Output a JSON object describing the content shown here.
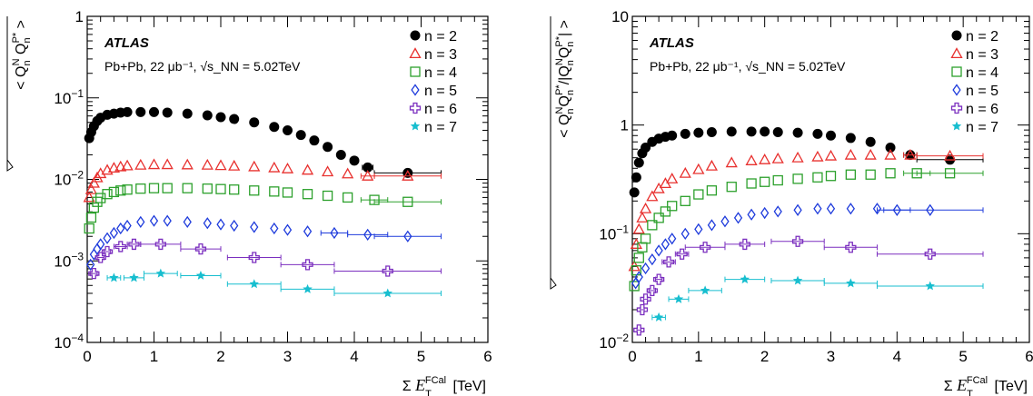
{
  "chart_data": [
    {
      "type": "scatter",
      "ylabel": "√< Q_n^N Q_n^{P*} >",
      "xlabel": "Σ E_T^FCal [TeV]",
      "atlas_label": "ATLAS",
      "subtitle": "Pb+Pb, 22 μb⁻¹, √s_NN = 5.02TeV",
      "xlim": [
        0,
        6
      ],
      "ylim": [
        0.0001,
        1
      ],
      "yscale": "log",
      "x_ticks": [
        "0",
        "1",
        "2",
        "3",
        "4",
        "5",
        "6"
      ],
      "y_ticks": [
        {
          "base": "10",
          "exp": "−4"
        },
        {
          "base": "10",
          "exp": "−3"
        },
        {
          "base": "10",
          "exp": "−2"
        },
        {
          "base": "10",
          "exp": "−1"
        },
        {
          "base": "1",
          "exp": ""
        }
      ],
      "legend_position": "top-right",
      "series": [
        {
          "name": "n = 2",
          "color": "#000000",
          "marker": "circle-filled",
          "x": [
            0.03,
            0.06,
            0.1,
            0.15,
            0.2,
            0.3,
            0.4,
            0.5,
            0.6,
            0.8,
            1.0,
            1.2,
            1.5,
            1.8,
            2.0,
            2.2,
            2.5,
            2.8,
            3.0,
            3.2,
            3.4,
            3.6,
            3.8,
            4.0,
            4.2,
            4.8
          ],
          "y": [
            0.032,
            0.038,
            0.045,
            0.052,
            0.057,
            0.062,
            0.064,
            0.066,
            0.067,
            0.067,
            0.067,
            0.066,
            0.064,
            0.061,
            0.058,
            0.055,
            0.05,
            0.044,
            0.04,
            0.035,
            0.03,
            0.025,
            0.02,
            0.017,
            0.014,
            0.012
          ],
          "xerr": [
            0,
            0,
            0,
            0,
            0,
            0,
            0,
            0,
            0,
            0,
            0,
            0,
            0,
            0,
            0,
            0,
            0,
            0,
            0,
            0,
            0,
            0,
            0,
            0,
            0.08,
            0.5
          ]
        },
        {
          "name": "n = 3",
          "color": "#e8312f",
          "marker": "triangle-open",
          "x": [
            0.03,
            0.06,
            0.1,
            0.15,
            0.2,
            0.3,
            0.4,
            0.5,
            0.6,
            0.8,
            1.0,
            1.2,
            1.5,
            1.8,
            2.0,
            2.2,
            2.5,
            2.8,
            3.0,
            3.3,
            3.6,
            3.9,
            4.2,
            4.8
          ],
          "y": [
            0.006,
            0.0075,
            0.009,
            0.0105,
            0.0118,
            0.013,
            0.0138,
            0.0143,
            0.0147,
            0.015,
            0.0152,
            0.0152,
            0.0151,
            0.015,
            0.0148,
            0.0146,
            0.0143,
            0.0139,
            0.0135,
            0.013,
            0.0124,
            0.0117,
            0.011,
            0.011
          ],
          "xerr": [
            0,
            0,
            0,
            0,
            0,
            0,
            0,
            0,
            0,
            0,
            0,
            0,
            0,
            0,
            0,
            0,
            0,
            0,
            0,
            0,
            0,
            0,
            0.1,
            0.5
          ]
        },
        {
          "name": "n = 4",
          "color": "#2ca02c",
          "marker": "square-open",
          "x": [
            0.03,
            0.06,
            0.1,
            0.15,
            0.2,
            0.3,
            0.4,
            0.5,
            0.6,
            0.8,
            1.0,
            1.2,
            1.5,
            1.8,
            2.0,
            2.2,
            2.5,
            2.8,
            3.0,
            3.3,
            3.6,
            3.9,
            4.3,
            4.8
          ],
          "y": [
            0.0025,
            0.0034,
            0.0045,
            0.0053,
            0.0059,
            0.0066,
            0.007,
            0.0073,
            0.0075,
            0.0077,
            0.0078,
            0.0078,
            0.0078,
            0.0077,
            0.0076,
            0.0075,
            0.0073,
            0.0071,
            0.0069,
            0.0066,
            0.0063,
            0.006,
            0.0056,
            0.0053
          ],
          "xerr": [
            0,
            0,
            0,
            0,
            0,
            0,
            0,
            0,
            0,
            0,
            0,
            0,
            0,
            0,
            0,
            0,
            0,
            0,
            0,
            0,
            0,
            0,
            0.2,
            0.5
          ]
        },
        {
          "name": "n = 5",
          "color": "#1f3cdc",
          "marker": "diamond-open",
          "x": [
            0.05,
            0.1,
            0.15,
            0.2,
            0.3,
            0.4,
            0.5,
            0.6,
            0.8,
            1.0,
            1.2,
            1.5,
            1.8,
            2.0,
            2.2,
            2.5,
            2.8,
            3.0,
            3.3,
            3.7,
            4.2,
            4.8
          ],
          "y": [
            0.0009,
            0.0012,
            0.0014,
            0.0016,
            0.0019,
            0.0022,
            0.0025,
            0.0027,
            0.003,
            0.0031,
            0.0031,
            0.003,
            0.0029,
            0.0028,
            0.0027,
            0.0026,
            0.0025,
            0.0024,
            0.0023,
            0.0022,
            0.0021,
            0.002
          ],
          "xerr": [
            0,
            0,
            0,
            0,
            0,
            0,
            0,
            0,
            0,
            0,
            0,
            0,
            0,
            0,
            0,
            0,
            0,
            0,
            0,
            0.2,
            0.3,
            0.5
          ]
        },
        {
          "name": "n = 6",
          "color": "#7b2fbf",
          "marker": "cross-open",
          "x": [
            0.1,
            0.2,
            0.3,
            0.5,
            0.7,
            1.1,
            1.7,
            2.5,
            3.3,
            4.5
          ],
          "y": [
            0.0007,
            0.0011,
            0.0013,
            0.0015,
            0.0016,
            0.0016,
            0.0014,
            0.0011,
            0.0009,
            0.00075
          ],
          "xerr": [
            0.05,
            0.05,
            0.05,
            0.1,
            0.1,
            0.3,
            0.3,
            0.4,
            0.4,
            0.8
          ]
        },
        {
          "name": "n = 7",
          "color": "#17becf",
          "marker": "star-filled",
          "x": [
            0.4,
            0.7,
            1.1,
            1.7,
            2.5,
            3.3,
            4.5
          ],
          "y": [
            0.00062,
            0.00062,
            0.0007,
            0.00066,
            0.00052,
            0.00045,
            0.0004
          ],
          "xerr": [
            0.1,
            0.15,
            0.25,
            0.3,
            0.4,
            0.4,
            0.8
          ]
        }
      ]
    },
    {
      "type": "scatter",
      "ylabel": "√< Q_n^N Q_n^{P*} / |Q_n^N Q_n^{P*}| >",
      "xlabel": "Σ E_T^FCal [TeV]",
      "atlas_label": "ATLAS",
      "subtitle": "Pb+Pb, 22 μb⁻¹, √s_NN = 5.02TeV",
      "xlim": [
        0,
        6
      ],
      "ylim": [
        0.01,
        10
      ],
      "yscale": "log",
      "x_ticks": [
        "0",
        "1",
        "2",
        "3",
        "4",
        "5",
        "6"
      ],
      "y_ticks": [
        {
          "base": "10",
          "exp": "−2"
        },
        {
          "base": "10",
          "exp": "−1"
        },
        {
          "base": "1",
          "exp": ""
        },
        {
          "base": "10",
          "exp": ""
        }
      ],
      "legend_position": "top-right",
      "series": [
        {
          "name": "n = 2",
          "color": "#000000",
          "marker": "circle-filled",
          "x": [
            0.03,
            0.06,
            0.1,
            0.15,
            0.2,
            0.3,
            0.4,
            0.5,
            0.6,
            0.8,
            1.0,
            1.2,
            1.5,
            1.8,
            2.0,
            2.2,
            2.5,
            2.8,
            3.0,
            3.3,
            3.6,
            3.9,
            4.2,
            4.8
          ],
          "y": [
            0.24,
            0.33,
            0.45,
            0.55,
            0.62,
            0.7,
            0.75,
            0.78,
            0.8,
            0.83,
            0.85,
            0.86,
            0.87,
            0.87,
            0.87,
            0.86,
            0.85,
            0.83,
            0.8,
            0.76,
            0.7,
            0.62,
            0.53,
            0.48
          ],
          "xerr": [
            0,
            0,
            0,
            0,
            0,
            0,
            0,
            0,
            0,
            0,
            0,
            0,
            0,
            0,
            0,
            0,
            0,
            0,
            0,
            0,
            0,
            0,
            0.1,
            0.5
          ]
        },
        {
          "name": "n = 3",
          "color": "#e8312f",
          "marker": "triangle-open",
          "x": [
            0.03,
            0.06,
            0.1,
            0.15,
            0.2,
            0.3,
            0.4,
            0.5,
            0.6,
            0.8,
            1.0,
            1.2,
            1.5,
            1.8,
            2.0,
            2.2,
            2.5,
            2.8,
            3.0,
            3.3,
            3.6,
            3.9,
            4.2,
            4.8
          ],
          "y": [
            0.05,
            0.08,
            0.11,
            0.14,
            0.17,
            0.22,
            0.26,
            0.29,
            0.32,
            0.36,
            0.39,
            0.42,
            0.45,
            0.47,
            0.48,
            0.49,
            0.5,
            0.51,
            0.52,
            0.53,
            0.53,
            0.53,
            0.53,
            0.52
          ],
          "xerr": [
            0,
            0,
            0,
            0,
            0,
            0,
            0,
            0,
            0,
            0,
            0,
            0,
            0,
            0,
            0,
            0,
            0,
            0,
            0,
            0,
            0,
            0,
            0.1,
            0.5
          ]
        },
        {
          "name": "n = 4",
          "color": "#2ca02c",
          "marker": "square-open",
          "x": [
            0.03,
            0.06,
            0.1,
            0.15,
            0.2,
            0.3,
            0.4,
            0.5,
            0.6,
            0.8,
            1.0,
            1.2,
            1.5,
            1.8,
            2.0,
            2.2,
            2.5,
            2.8,
            3.0,
            3.3,
            3.6,
            3.9,
            4.3,
            4.8
          ],
          "y": [
            0.033,
            0.046,
            0.06,
            0.075,
            0.09,
            0.12,
            0.14,
            0.16,
            0.18,
            0.2,
            0.23,
            0.25,
            0.27,
            0.29,
            0.3,
            0.31,
            0.32,
            0.33,
            0.34,
            0.35,
            0.35,
            0.36,
            0.36,
            0.36
          ],
          "xerr": [
            0,
            0,
            0,
            0,
            0,
            0,
            0,
            0,
            0,
            0,
            0,
            0,
            0,
            0,
            0,
            0,
            0,
            0,
            0,
            0,
            0,
            0,
            0.2,
            0.5
          ]
        },
        {
          "name": "n = 5",
          "color": "#1f3cdc",
          "marker": "diamond-open",
          "x": [
            0.05,
            0.1,
            0.2,
            0.3,
            0.4,
            0.5,
            0.6,
            0.8,
            1.0,
            1.2,
            1.4,
            1.6,
            1.8,
            2.0,
            2.2,
            2.5,
            2.8,
            3.0,
            3.3,
            3.7,
            4.0,
            4.5
          ],
          "y": [
            0.035,
            0.04,
            0.048,
            0.058,
            0.07,
            0.08,
            0.09,
            0.1,
            0.11,
            0.12,
            0.13,
            0.14,
            0.15,
            0.155,
            0.16,
            0.165,
            0.17,
            0.17,
            0.17,
            0.17,
            0.165,
            0.165
          ],
          "xerr": [
            0,
            0,
            0,
            0,
            0,
            0,
            0,
            0,
            0,
            0,
            0,
            0,
            0,
            0,
            0,
            0,
            0,
            0,
            0,
            0,
            0.2,
            0.8
          ]
        },
        {
          "name": "n = 6",
          "color": "#7b2fbf",
          "marker": "cross-open",
          "x": [
            0.1,
            0.15,
            0.2,
            0.3,
            0.4,
            0.55,
            0.75,
            1.1,
            1.7,
            2.5,
            3.3,
            4.5
          ],
          "y": [
            0.013,
            0.02,
            0.025,
            0.03,
            0.038,
            0.055,
            0.065,
            0.075,
            0.08,
            0.085,
            0.075,
            0.065
          ],
          "xerr": [
            0.03,
            0.03,
            0.03,
            0.05,
            0.05,
            0.1,
            0.1,
            0.3,
            0.3,
            0.4,
            0.4,
            0.8
          ]
        },
        {
          "name": "n = 7",
          "color": "#17becf",
          "marker": "star-filled",
          "x": [
            0.4,
            0.7,
            1.1,
            1.7,
            2.5,
            3.3,
            4.5
          ],
          "y": [
            0.017,
            0.025,
            0.03,
            0.038,
            0.037,
            0.035,
            0.033
          ],
          "xerr": [
            0.1,
            0.15,
            0.25,
            0.3,
            0.4,
            0.4,
            0.8
          ]
        }
      ]
    }
  ]
}
